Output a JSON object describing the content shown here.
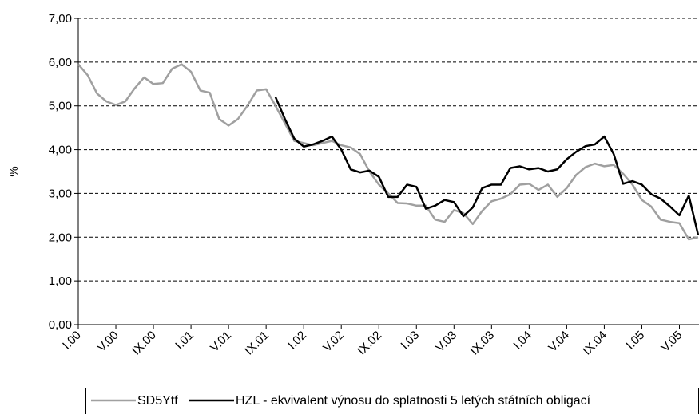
{
  "chart_data": {
    "type": "line",
    "y_label": "%",
    "categories": [
      "I.00",
      null,
      null,
      null,
      "V.00",
      null,
      null,
      null,
      "IX.00",
      null,
      null,
      null,
      "I.01",
      null,
      null,
      null,
      "V.01",
      null,
      null,
      null,
      "IX.01",
      null,
      null,
      null,
      "I.02",
      null,
      null,
      null,
      "V.02",
      null,
      null,
      null,
      "IX.02",
      null,
      null,
      null,
      "I.03",
      null,
      null,
      null,
      "V.03",
      null,
      null,
      null,
      "IX.03",
      null,
      null,
      null,
      "I.04",
      null,
      null,
      null,
      "V.04",
      null,
      null,
      null,
      "IX.04",
      null,
      null,
      null,
      "I.05",
      null,
      null,
      null,
      "V.05",
      null,
      null
    ],
    "series": [
      {
        "name": "SD5Ytf",
        "color": "#a0a0a0",
        "values": [
          5.95,
          5.7,
          5.28,
          5.1,
          5.02,
          5.1,
          5.4,
          5.65,
          5.5,
          5.52,
          5.85,
          5.95,
          5.78,
          5.35,
          5.3,
          4.7,
          4.55,
          4.7,
          5.0,
          5.35,
          5.38,
          5.0,
          4.6,
          4.2,
          4.15,
          4.1,
          4.15,
          4.2,
          4.1,
          4.05,
          3.9,
          3.5,
          3.2,
          3.0,
          2.78,
          2.77,
          2.72,
          2.72,
          2.4,
          2.35,
          2.62,
          2.55,
          2.3,
          2.6,
          2.82,
          2.88,
          2.98,
          3.2,
          3.22,
          3.08,
          3.2,
          2.92,
          3.12,
          3.42,
          3.6,
          3.68,
          3.62,
          3.65,
          3.45,
          3.2,
          2.85,
          2.7,
          2.4,
          2.35,
          2.32,
          1.95,
          2.0
        ]
      },
      {
        "name": "HZL - ekvivalent výnosu do splatnosti 5 letých státních obligací",
        "color": "#000000",
        "values": [
          null,
          null,
          null,
          null,
          null,
          null,
          null,
          null,
          null,
          null,
          null,
          null,
          null,
          null,
          null,
          null,
          null,
          null,
          null,
          null,
          null,
          5.2,
          4.7,
          4.25,
          4.07,
          4.12,
          4.2,
          4.3,
          4.0,
          3.55,
          3.48,
          3.52,
          3.38,
          2.92,
          2.92,
          3.2,
          3.15,
          2.65,
          2.72,
          2.85,
          2.8,
          2.48,
          2.68,
          3.12,
          3.2,
          3.2,
          3.58,
          3.62,
          3.55,
          3.58,
          3.5,
          3.55,
          3.78,
          3.95,
          4.08,
          4.12,
          4.3,
          3.9,
          3.22,
          3.28,
          3.2,
          2.98,
          2.88,
          2.7,
          2.5,
          2.95,
          2.05
        ]
      }
    ],
    "ylim": [
      0,
      7
    ],
    "yticks": [
      {
        "value": 0,
        "label": "0,00"
      },
      {
        "value": 1,
        "label": "1,00"
      },
      {
        "value": 2,
        "label": "2,00"
      },
      {
        "value": 3,
        "label": "3,00"
      },
      {
        "value": 4,
        "label": "4,00"
      },
      {
        "value": 5,
        "label": "5,00"
      },
      {
        "value": 6,
        "label": "6,00"
      },
      {
        "value": 7,
        "label": "7,00"
      }
    ],
    "grid": true,
    "legend": "bottom"
  }
}
